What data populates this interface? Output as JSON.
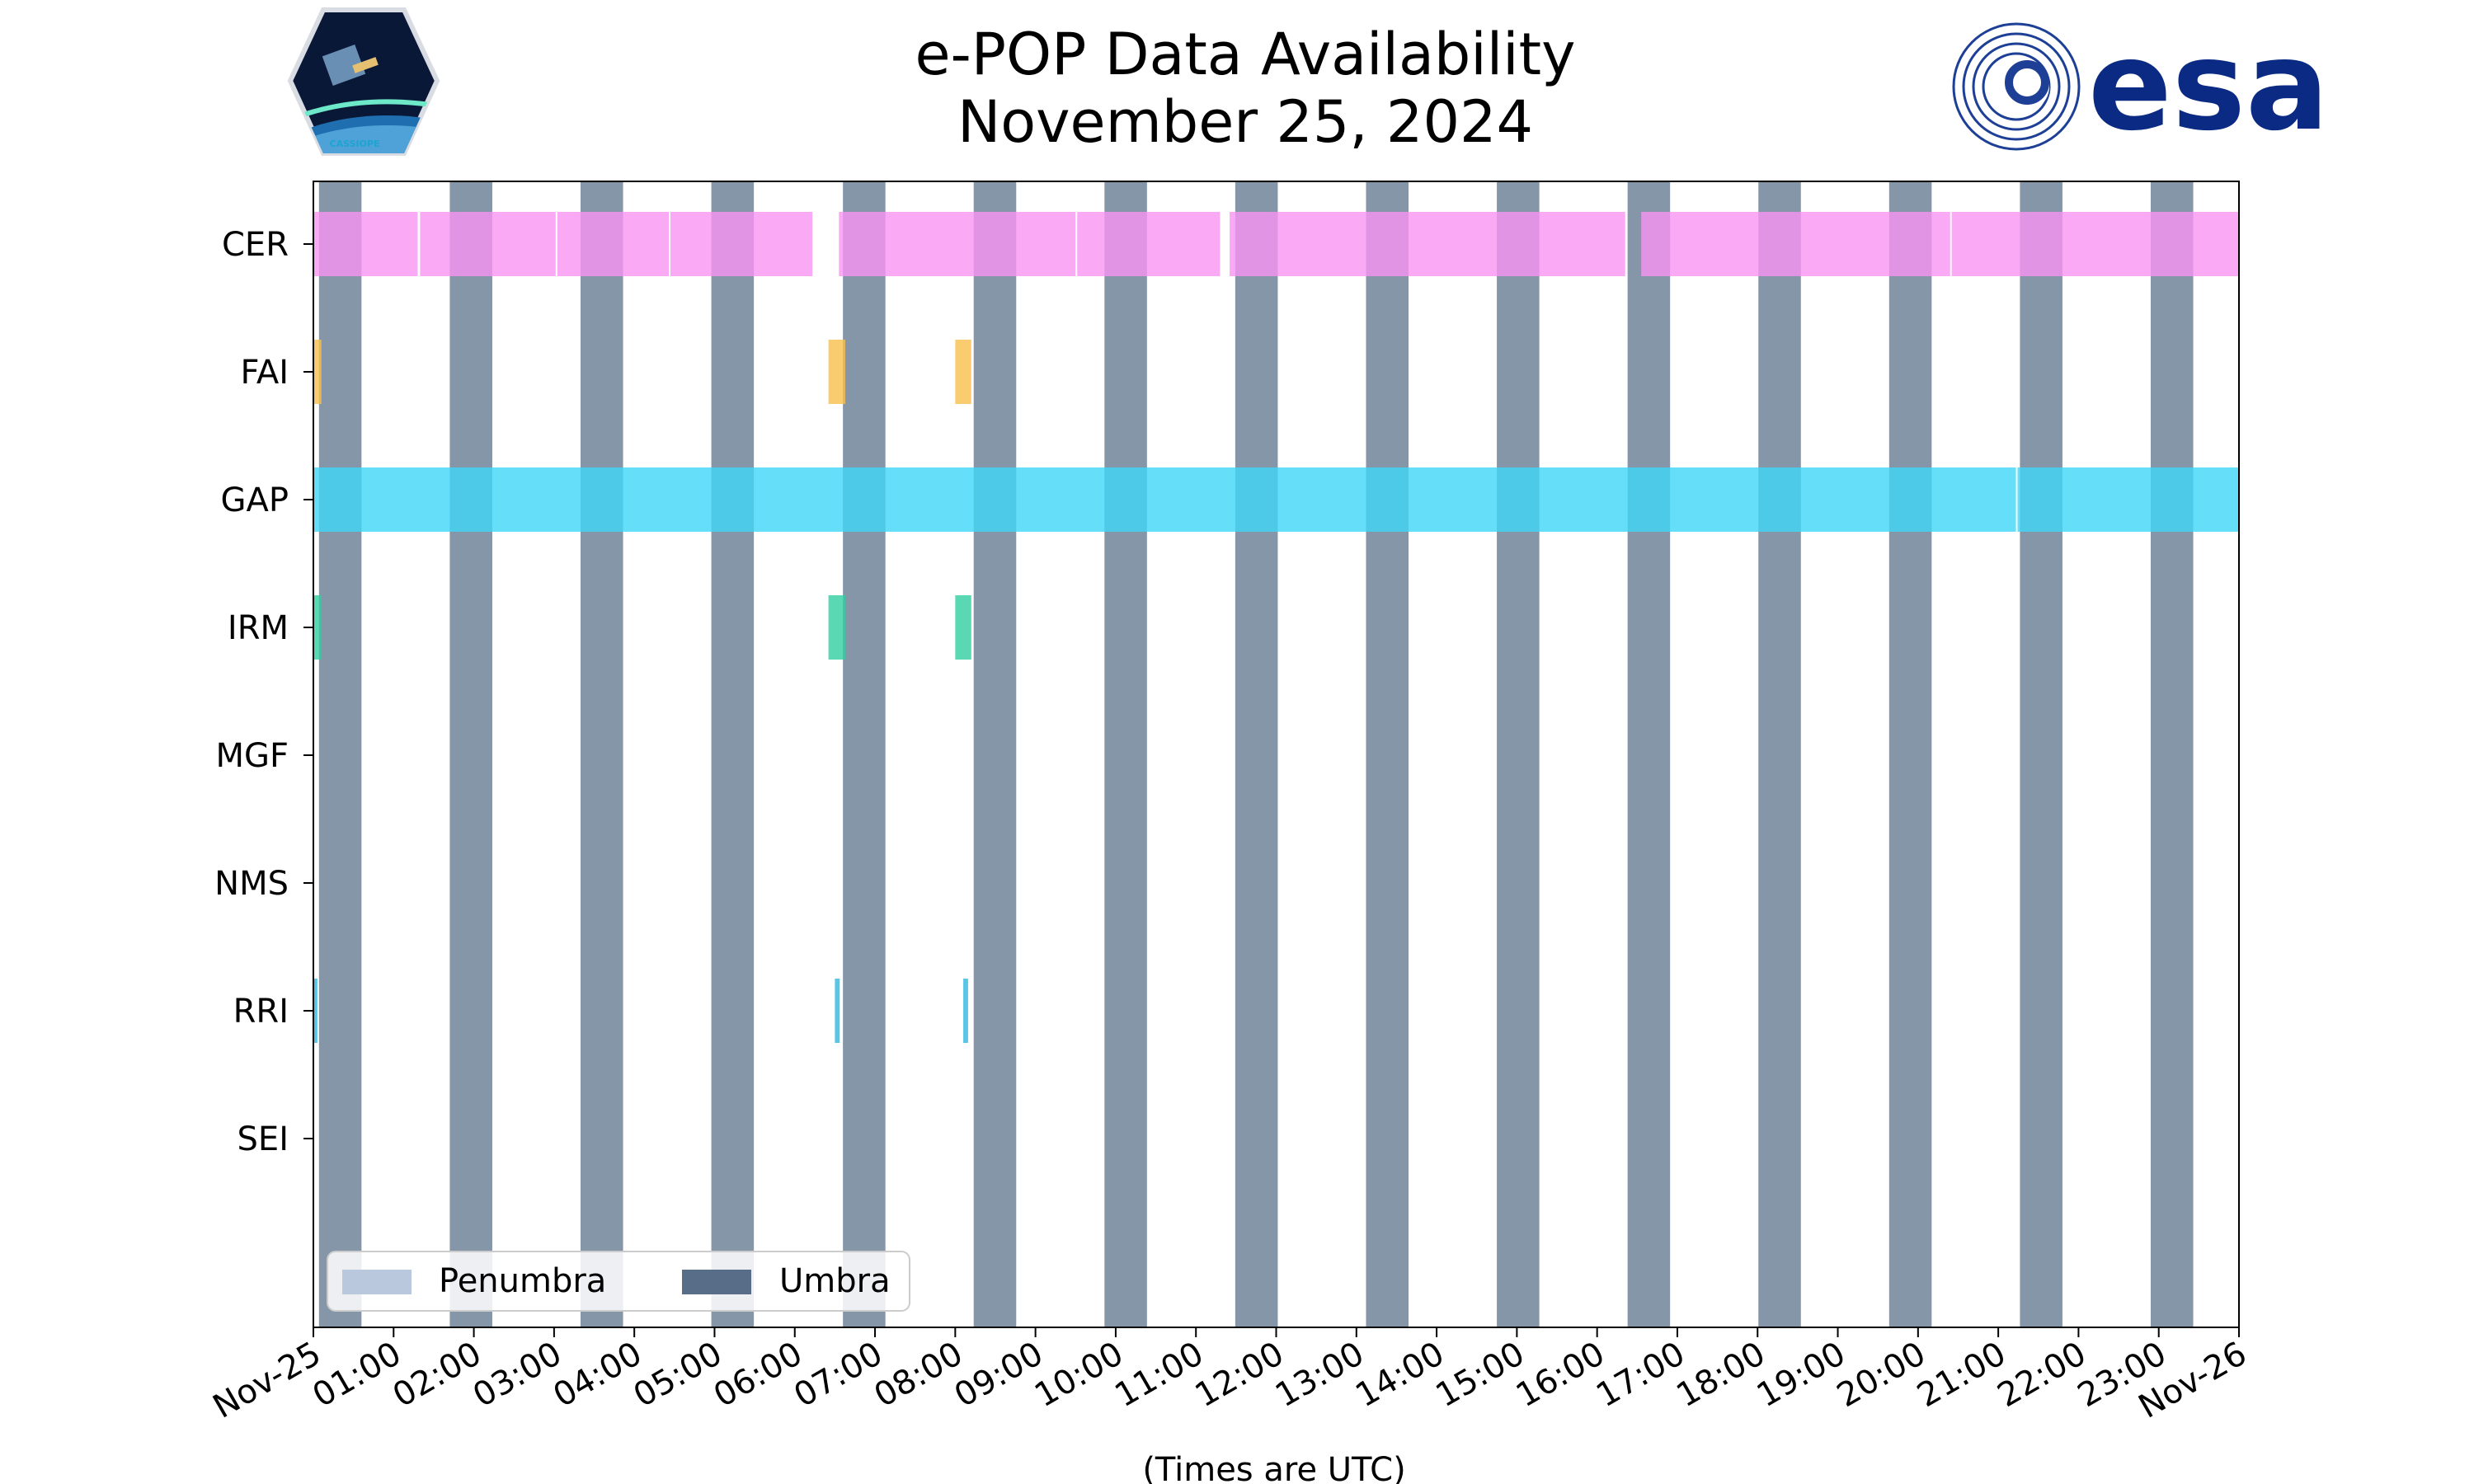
{
  "chart_data": {
    "type": "timeline",
    "title": "e-POP Data Availability",
    "subtitle": "November 25, 2024",
    "xlabel": "(Times are UTC)",
    "x_range_hours": [
      0,
      24
    ],
    "tick_labels": [
      "Nov-25",
      "01:00",
      "02:00",
      "03:00",
      "04:00",
      "05:00",
      "06:00",
      "07:00",
      "08:00",
      "09:00",
      "10:00",
      "11:00",
      "12:00",
      "13:00",
      "14:00",
      "15:00",
      "16:00",
      "17:00",
      "18:00",
      "19:00",
      "20:00",
      "21:00",
      "22:00",
      "23:00",
      "Nov-26"
    ],
    "instruments": [
      "CER",
      "FAI",
      "GAP",
      "IRM",
      "MGF",
      "NMS",
      "RRI",
      "SEI"
    ],
    "umbra_intervals": [
      [
        0.07,
        0.6
      ],
      [
        1.7,
        2.23
      ],
      [
        3.33,
        3.86
      ],
      [
        4.96,
        5.49
      ],
      [
        6.6,
        7.13
      ],
      [
        8.23,
        8.76
      ],
      [
        9.86,
        10.39
      ],
      [
        11.49,
        12.02
      ],
      [
        13.12,
        13.65
      ],
      [
        14.75,
        15.28
      ],
      [
        16.38,
        16.91
      ],
      [
        18.01,
        18.54
      ],
      [
        19.64,
        20.17
      ],
      [
        21.27,
        21.8
      ],
      [
        22.9,
        23.43
      ]
    ],
    "penumbra_intervals": [],
    "legend": {
      "position": "lower-left",
      "entries": [
        "Penumbra",
        "Umbra"
      ]
    },
    "series": [
      {
        "name": "CER",
        "color": "#f993f3",
        "intervals": [
          [
            0.0,
            1.3
          ],
          [
            1.33,
            3.02
          ],
          [
            3.04,
            4.43
          ],
          [
            4.45,
            6.22
          ],
          [
            6.55,
            9.5
          ],
          [
            9.52,
            11.3
          ],
          [
            11.42,
            16.35
          ],
          [
            16.55,
            20.4
          ],
          [
            20.42,
            24.0
          ]
        ]
      },
      {
        "name": "FAI",
        "color": "#f6bf4b",
        "intervals": [
          [
            0.0,
            0.1
          ],
          [
            6.42,
            6.63
          ],
          [
            8.0,
            8.2
          ]
        ]
      },
      {
        "name": "GAP",
        "color": "#3fd7f7",
        "intervals": [
          [
            0.0,
            21.22
          ],
          [
            21.24,
            24.0
          ]
        ]
      },
      {
        "name": "IRM",
        "color": "#2fcea0",
        "intervals": [
          [
            0.0,
            0.1
          ],
          [
            6.42,
            6.63
          ],
          [
            8.0,
            8.2
          ]
        ]
      },
      {
        "name": "MGF",
        "color": "#cccccc",
        "intervals": []
      },
      {
        "name": "NMS",
        "color": "#cccccc",
        "intervals": []
      },
      {
        "name": "RRI",
        "color": "#31b8e0",
        "intervals": [
          [
            0.0,
            0.05
          ],
          [
            6.5,
            6.56
          ],
          [
            8.1,
            8.16
          ]
        ]
      },
      {
        "name": "SEI",
        "color": "#cccccc",
        "intervals": []
      }
    ]
  },
  "colors": {
    "umbra": "#576d88",
    "penumbra": "#b9c8dd"
  },
  "logos": {
    "left_text": "CASSIOPE",
    "right_text": "esa"
  }
}
